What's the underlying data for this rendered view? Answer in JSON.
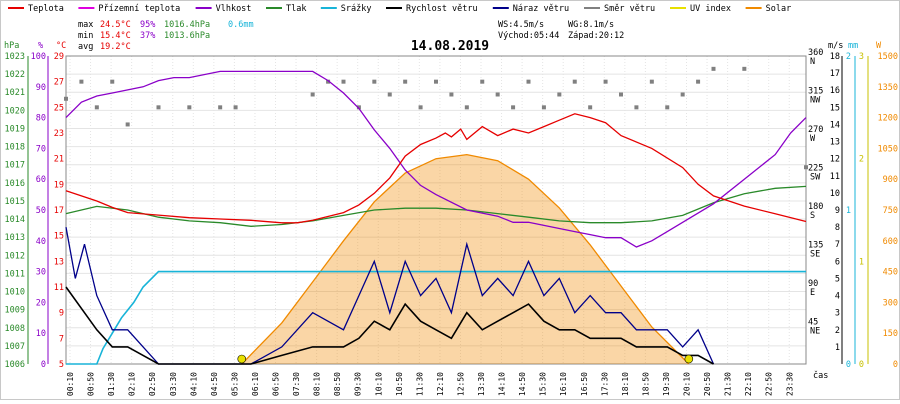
{
  "legend": [
    {
      "label": "Teplota",
      "color": "#e60000"
    },
    {
      "label": "Přízemní teplota",
      "color": "#e000e0"
    },
    {
      "label": "Vlhkost",
      "color": "#8a00c8"
    },
    {
      "label": "Tlak",
      "color": "#2a8a2a"
    },
    {
      "label": "Srážky",
      "color": "#18b4d8"
    },
    {
      "label": "Rychlost větru",
      "color": "#000000"
    },
    {
      "label": "Náraz větru",
      "color": "#00008a"
    },
    {
      "label": "Směr větru",
      "color": "#808080"
    },
    {
      "label": "UV index",
      "color": "#e8e000"
    },
    {
      "label": "Solar",
      "color": "#f08a00"
    }
  ],
  "stats": {
    "max_label": "max",
    "max_temp": "24.5°C",
    "max_hum": "95%",
    "max_press": "1016.4hPa",
    "precip": "0.6mm",
    "min_label": "min",
    "min_temp": "15.4°C",
    "min_hum": "37%",
    "min_press": "1013.6hPa",
    "avg_label": "avg",
    "avg_temp": "19.2°C"
  },
  "wind_info": {
    "ws": "WS:4.5m/s",
    "wg": "WG:8.1m/s",
    "sunrise": "Východ:05:44",
    "sunset": "Západ:20:12"
  },
  "axis_units": {
    "hpa": "hPa",
    "pct": "%",
    "degc": "°C",
    "ms": "m/s",
    "mm": "mm",
    "w": "W",
    "time": "čas"
  },
  "chart_data": {
    "type": "line",
    "title": "14.08.2019",
    "x_ticks": [
      "00:10",
      "00:50",
      "01:30",
      "02:10",
      "02:50",
      "03:30",
      "04:10",
      "04:50",
      "05:30",
      "06:10",
      "06:50",
      "07:30",
      "08:10",
      "08:50",
      "09:30",
      "10:10",
      "10:50",
      "11:30",
      "12:10",
      "12:50",
      "13:30",
      "14:10",
      "14:50",
      "15:30",
      "16:10",
      "16:50",
      "17:30",
      "18:10",
      "18:50",
      "19:30",
      "20:10",
      "20:50",
      "21:30",
      "22:10",
      "22:50",
      "23:30"
    ],
    "axes": {
      "pressure_hpa": {
        "min": 1006,
        "max": 1023,
        "ticks": [
          1006,
          1007,
          1008,
          1009,
          1010,
          1011,
          1012,
          1013,
          1014,
          1015,
          1016,
          1017,
          1018,
          1019,
          1020,
          1021,
          1022,
          1023
        ]
      },
      "humidity_pct": {
        "ticks": [
          0,
          10,
          20,
          30,
          40,
          50,
          60,
          70,
          80,
          90,
          100
        ]
      },
      "temperature_c": {
        "ticks": [
          5,
          7,
          9,
          11,
          13,
          15,
          17,
          19,
          21,
          23,
          25,
          27,
          29
        ]
      },
      "wind_dir": {
        "ticks": [
          {
            "deg": 45,
            "dir": "NE"
          },
          {
            "deg": 90,
            "dir": "E"
          },
          {
            "deg": 135,
            "dir": "SE"
          },
          {
            "deg": 180,
            "dir": "S"
          },
          {
            "deg": 225,
            "dir": "SW"
          },
          {
            "deg": 270,
            "dir": "W"
          },
          {
            "deg": 315,
            "dir": "NW"
          },
          {
            "deg": 360,
            "dir": "N"
          }
        ]
      },
      "wind_ms": {
        "ticks": [
          1,
          2,
          3,
          4,
          5,
          6,
          7,
          8,
          9,
          10,
          11,
          12,
          13,
          14,
          15,
          16,
          17,
          18
        ]
      },
      "precip_mm": {
        "ticks": [
          0,
          1,
          2
        ]
      },
      "uv": {
        "ticks": [
          0,
          1,
          2,
          3
        ]
      },
      "solar_w": {
        "ticks": [
          0,
          150,
          300,
          450,
          600,
          750,
          900,
          1050,
          1200,
          1350,
          1500
        ]
      }
    },
    "series": [
      {
        "name": "Teplota",
        "axis": "temperature_c",
        "color": "#e60000",
        "x": [
          0,
          1,
          1.5,
          2,
          3,
          4,
          5,
          6,
          7,
          7.5,
          8,
          9,
          9.5,
          10,
          10.5,
          11,
          11.5,
          12,
          12.3,
          12.5,
          12.8,
          13,
          13.5,
          14,
          14.5,
          15,
          15.5,
          16,
          16.5,
          17,
          17.5,
          18,
          19,
          20,
          20.5,
          21,
          22,
          23,
          24
        ],
        "y": [
          18.5,
          17.7,
          17.2,
          16.8,
          16.6,
          16.4,
          16.3,
          16.2,
          16.0,
          16.0,
          16.2,
          16.8,
          17.4,
          18.3,
          19.5,
          21.2,
          22.1,
          22.6,
          23.0,
          22.7,
          23.3,
          22.5,
          23.5,
          22.8,
          23.3,
          23.0,
          23.5,
          24.0,
          24.5,
          24.2,
          23.8,
          22.8,
          21.8,
          20.3,
          19.0,
          18.1,
          17.3,
          16.7,
          16.1
        ]
      },
      {
        "name": "Vlhkost",
        "axis": "humidity_pct",
        "color": "#8a00c8",
        "x": [
          0,
          0.5,
          1,
          1.5,
          2,
          2.5,
          3,
          3.5,
          4,
          5,
          6,
          6.5,
          7,
          7.5,
          8,
          8.5,
          9,
          9.5,
          10,
          10.5,
          11,
          11.5,
          12,
          13,
          14,
          14.5,
          15,
          15.5,
          16,
          16.5,
          17,
          17.5,
          18,
          18.5,
          19,
          19.5,
          20,
          21,
          22,
          23,
          23.5,
          24
        ],
        "y": [
          80,
          85,
          87,
          88,
          89,
          90,
          92,
          93,
          93,
          95,
          95,
          95,
          95,
          95,
          95,
          92,
          88,
          83,
          76,
          70,
          63,
          58,
          55,
          50,
          48,
          46,
          46,
          45,
          44,
          43,
          42,
          41,
          41,
          38,
          40,
          43,
          46,
          52,
          60,
          68,
          75,
          80
        ]
      },
      {
        "name": "Tlak",
        "axis": "pressure_hpa",
        "color": "#2a8a2a",
        "x": [
          0,
          1,
          2,
          3,
          4,
          5,
          6,
          7,
          8,
          9,
          10,
          11,
          12,
          13,
          14,
          15,
          16,
          17,
          18,
          19,
          20,
          21,
          22,
          23,
          24
        ],
        "y": [
          1014.3,
          1014.7,
          1014.5,
          1014.1,
          1013.9,
          1013.8,
          1013.6,
          1013.7,
          1013.9,
          1014.2,
          1014.5,
          1014.6,
          1014.6,
          1014.5,
          1014.3,
          1014.1,
          1013.9,
          1013.8,
          1013.8,
          1013.9,
          1014.2,
          1014.9,
          1015.4,
          1015.7,
          1015.8
        ]
      },
      {
        "name": "Srážky",
        "axis": "precip_mm",
        "color": "#18b4d8",
        "x": [
          0,
          1,
          1.2,
          1.5,
          1.8,
          2.2,
          2.5,
          3,
          24
        ],
        "y": [
          0,
          0,
          0.1,
          0.2,
          0.3,
          0.4,
          0.5,
          0.6,
          0.6
        ]
      },
      {
        "name": "Rychlost větru",
        "axis": "wind_ms",
        "color": "#000000",
        "x": [
          0,
          1,
          1.5,
          2,
          2.5,
          3,
          6,
          7,
          8,
          9,
          9.5,
          10,
          10.5,
          11,
          11.5,
          12,
          12.5,
          13,
          13.5,
          14,
          14.5,
          15,
          15.5,
          16,
          16.5,
          17,
          17.5,
          18,
          18.5,
          19,
          19.5,
          20,
          20.5,
          21
        ],
        "y": [
          4.5,
          2,
          1,
          1,
          0.5,
          0,
          0,
          0.5,
          1,
          1,
          1.5,
          2.5,
          2,
          3.5,
          2.5,
          2,
          1.5,
          3,
          2,
          2.5,
          3,
          3.5,
          2.5,
          2,
          2,
          1.5,
          1.5,
          1.5,
          1,
          1,
          1,
          0.5,
          0.5,
          0
        ]
      },
      {
        "name": "Náraz větru",
        "axis": "wind_ms",
        "color": "#00008a",
        "x": [
          0,
          0.3,
          0.6,
          1,
          1.5,
          2,
          2.5,
          3,
          6,
          7,
          8,
          9,
          9.5,
          10,
          10.5,
          11,
          11.5,
          12,
          12.5,
          13,
          13.5,
          14,
          14.5,
          15,
          15.5,
          16,
          16.5,
          17,
          17.5,
          18,
          18.5,
          19,
          19.5,
          20,
          20.5,
          21
        ],
        "y": [
          8,
          5,
          7,
          4,
          2,
          2,
          1,
          0,
          0,
          1,
          3,
          2,
          4,
          6,
          3,
          6,
          4,
          5,
          3,
          7,
          4,
          5,
          4,
          6,
          4,
          5,
          3,
          4,
          3,
          3,
          2,
          2,
          2,
          1,
          2,
          0
        ]
      },
      {
        "name": "Směr větru",
        "axis": "wind_dir",
        "color": "#808080",
        "x": [
          0,
          0.5,
          1,
          1.5,
          2,
          3,
          4,
          5,
          5.5,
          8,
          8.5,
          9,
          9.5,
          10,
          10.5,
          11,
          11.5,
          12,
          12.5,
          13,
          13.5,
          14,
          14.5,
          15,
          15.5,
          16,
          16.5,
          17,
          17.5,
          18,
          18.5,
          19,
          19.5,
          20,
          20.5,
          21,
          22,
          24
        ],
        "y": [
          310,
          330,
          300,
          330,
          280,
          300,
          300,
          300,
          300,
          315,
          330,
          330,
          300,
          330,
          315,
          330,
          300,
          330,
          315,
          300,
          330,
          315,
          300,
          330,
          300,
          315,
          330,
          300,
          330,
          315,
          300,
          330,
          300,
          315,
          330,
          345,
          345,
          230
        ]
      },
      {
        "name": "Solar",
        "axis": "solar_w",
        "color": "#f08a00",
        "x": [
          5.7,
          7,
          8,
          9,
          10,
          11,
          12,
          13,
          14,
          15,
          16,
          17,
          18,
          19,
          20.2
        ],
        "y": [
          0,
          200,
          400,
          600,
          790,
          930,
          1000,
          1020,
          990,
          900,
          760,
          580,
          380,
          180,
          0
        ]
      },
      {
        "name": "UV index",
        "axis": "uv",
        "color": "#e8e000",
        "x": [
          5.7,
          20.2
        ],
        "y": [
          0,
          0
        ]
      }
    ]
  }
}
